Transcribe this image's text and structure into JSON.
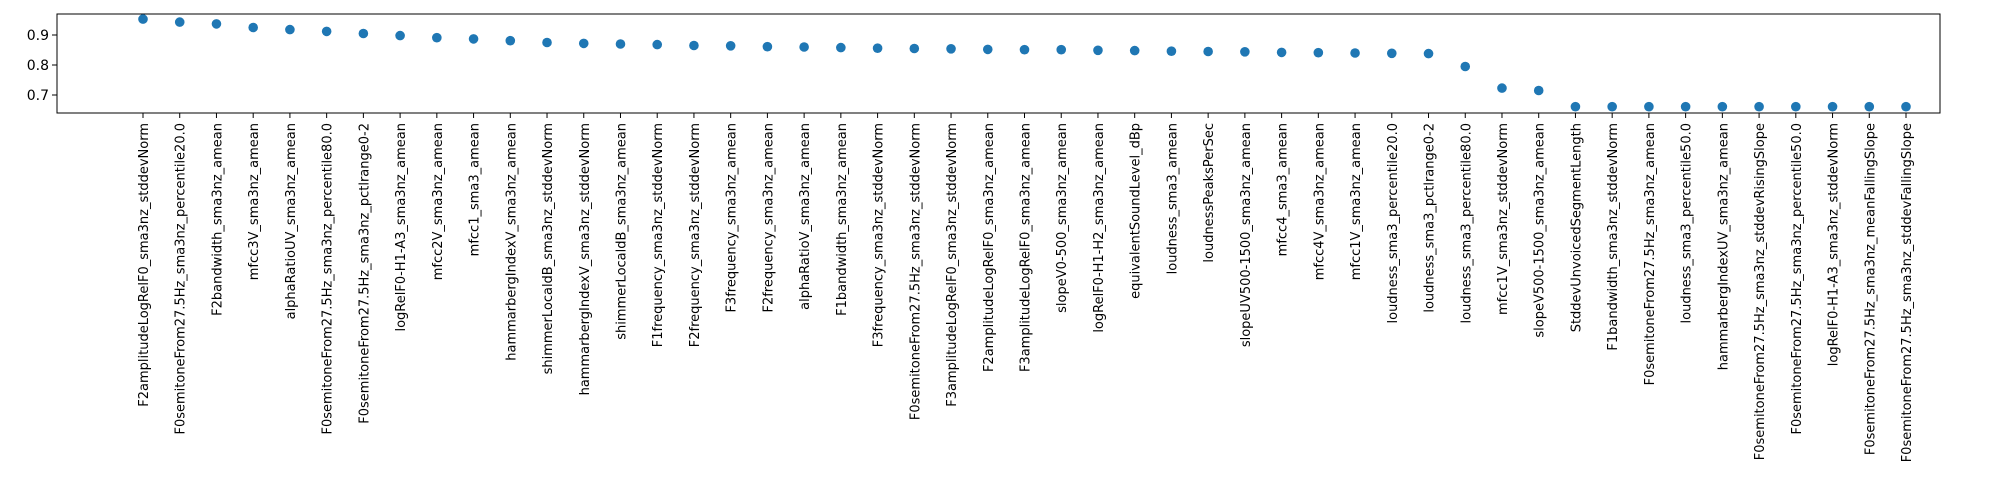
{
  "chart_data": {
    "type": "scatter",
    "title": "",
    "xlabel": "",
    "ylabel": "",
    "ylim": [
      0.64,
      0.97
    ],
    "yticks": [
      0.7,
      0.8,
      0.9
    ],
    "grid": false,
    "marker_color": "#1f77b4",
    "categories": [
      "F2amplitudeLogRelF0_sma3nz_stddevNorm",
      "F0semitoneFrom27.5Hz_sma3nz_percentile20.0",
      "F2bandwidth_sma3nz_amean",
      "mfcc3V_sma3nz_amean",
      "alphaRatioUV_sma3nz_amean",
      "F0semitoneFrom27.5Hz_sma3nz_percentile80.0",
      "F0semitoneFrom27.5Hz_sma3nz_pctlrange0-2",
      "logRelF0-H1-A3_sma3nz_amean",
      "mfcc2V_sma3nz_amean",
      "mfcc1_sma3_amean",
      "hammarbergIndexV_sma3nz_amean",
      "shimmerLocaldB_sma3nz_stddevNorm",
      "hammarbergIndexV_sma3nz_stddevNorm",
      "shimmerLocaldB_sma3nz_amean",
      "F1frequency_sma3nz_stddevNorm",
      "F2frequency_sma3nz_stddevNorm",
      "F3frequency_sma3nz_amean",
      "F2frequency_sma3nz_amean",
      "alphaRatioV_sma3nz_amean",
      "F1bandwidth_sma3nz_amean",
      "F3frequency_sma3nz_stddevNorm",
      "F0semitoneFrom27.5Hz_sma3nz_stddevNorm",
      "F3amplitudeLogRelF0_sma3nz_stddevNorm",
      "F2amplitudeLogRelF0_sma3nz_amean",
      "F3amplitudeLogRelF0_sma3nz_amean",
      "slopeV0-500_sma3nz_amean",
      "logRelF0-H1-H2_sma3nz_amean",
      "equivalentSoundLevel_dBp",
      "loudness_sma3_amean",
      "loudnessPeaksPerSec",
      "slopeUV500-1500_sma3nz_amean",
      "mfcc4_sma3_amean",
      "mfcc4V_sma3nz_amean",
      "mfcc1V_sma3nz_amean",
      "loudness_sma3_percentile20.0",
      "loudness_sma3_pctlrange0-2",
      "loudness_sma3_percentile80.0",
      "mfcc1V_sma3nz_stddevNorm",
      "slopeV500-1500_sma3nz_amean",
      "StddevUnvoicedSegmentLength",
      "F1bandwidth_sma3nz_stddevNorm",
      "F0semitoneFrom27.5Hz_sma3nz_amean",
      "loudness_sma3_percentile50.0",
      "hammarbergIndexUV_sma3nz_amean",
      "F0semitoneFrom27.5Hz_sma3nz_stddevRisingSlope",
      "F0semitoneFrom27.5Hz_sma3nz_percentile50.0",
      "logRelF0-H1-A3_sma3nz_stddevNorm",
      "F0semitoneFrom27.5Hz_sma3nz_meanFallingSlope",
      "F0semitoneFrom27.5Hz_sma3nz_stddevFallingSlope"
    ],
    "values": [
      0.953,
      0.943,
      0.937,
      0.925,
      0.918,
      0.912,
      0.905,
      0.898,
      0.891,
      0.887,
      0.881,
      0.875,
      0.872,
      0.87,
      0.868,
      0.865,
      0.864,
      0.861,
      0.86,
      0.858,
      0.856,
      0.855,
      0.854,
      0.852,
      0.851,
      0.851,
      0.849,
      0.848,
      0.846,
      0.845,
      0.844,
      0.842,
      0.841,
      0.84,
      0.839,
      0.838,
      0.795,
      0.723,
      0.715,
      0.661,
      0.661,
      0.661,
      0.661,
      0.661,
      0.661,
      0.661,
      0.661,
      0.661,
      0.661
    ]
  }
}
